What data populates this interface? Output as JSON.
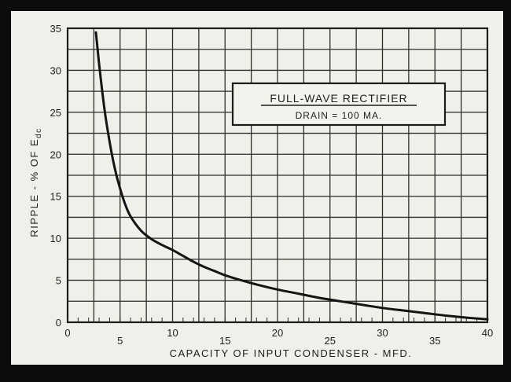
{
  "chart_data": {
    "type": "line",
    "title": "FULL-WAVE RECTIFIER",
    "subtitle": "DRAIN = 100 MA.",
    "xlabel": "CAPACITY OF INPUT CONDENSER - MFD.",
    "ylabel": "RIPPLE - % OF E",
    "ylabel_subscript": "dc",
    "xlim": [
      0,
      40
    ],
    "ylim": [
      0,
      35
    ],
    "x_ticks": [
      0,
      5,
      10,
      15,
      20,
      25,
      30,
      35,
      40
    ],
    "y_ticks": [
      0,
      5,
      10,
      15,
      20,
      25,
      30,
      35
    ],
    "grid": true,
    "legend_position": "top-right",
    "series": [
      {
        "x": [
          2.7,
          3,
          3.5,
          4,
          4.5,
          5,
          5.5,
          6,
          7,
          8,
          9,
          10,
          11,
          12,
          13,
          14,
          15,
          16,
          18,
          20,
          22,
          24,
          26,
          28,
          30,
          32,
          34,
          36,
          38,
          40
        ],
        "values": [
          34.5,
          30.8,
          25.5,
          21.5,
          18.3,
          15.9,
          14.0,
          12.6,
          10.9,
          9.9,
          9.2,
          8.6,
          7.9,
          7.2,
          6.6,
          6.1,
          5.6,
          5.2,
          4.5,
          3.9,
          3.4,
          2.9,
          2.5,
          2.1,
          1.7,
          1.4,
          1.1,
          0.8,
          0.55,
          0.35
        ]
      }
    ]
  }
}
